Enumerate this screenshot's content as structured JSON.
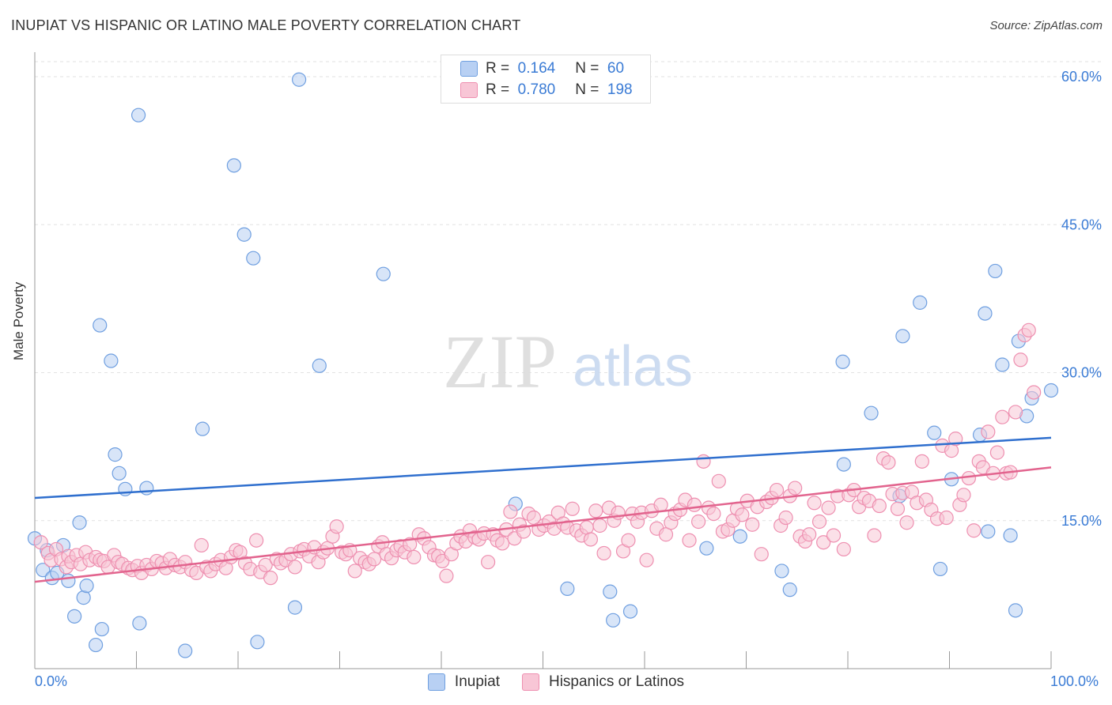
{
  "title": "INUPIAT VS HISPANIC OR LATINO MALE POVERTY CORRELATION CHART",
  "source": "Source: ZipAtlas.com",
  "watermark": {
    "zip": "ZIP",
    "atlas": "atlas"
  },
  "stats": [
    {
      "r_label": "R =",
      "r_value": "0.164",
      "n_label": "N =",
      "n_value": "60"
    },
    {
      "r_label": "R =",
      "r_value": "0.780",
      "n_label": "N =",
      "n_value": "198"
    }
  ],
  "chart_data": {
    "type": "scatter",
    "ylabel": "Male Poverty",
    "xlim": [
      0,
      100
    ],
    "ylim": [
      0,
      60
    ],
    "x_ticks": [
      "0.0%",
      "100.0%"
    ],
    "y_ticks": [
      {
        "value": 15,
        "label": "15.0%"
      },
      {
        "value": 30,
        "label": "30.0%"
      },
      {
        "value": 45,
        "label": "45.0%"
      },
      {
        "value": 60,
        "label": "60.0%"
      }
    ],
    "grid": true,
    "colors": {
      "inupiat": "#6f9fe0",
      "inupiat_fill": "#b8d0f3",
      "inupiat_line": "#2f6fce",
      "hispanic": "#ee8fb0",
      "hispanic_fill": "#f8c6d6",
      "hispanic_line": "#e2648e",
      "value_text": "#3a7bd5"
    },
    "series": [
      {
        "name": "Inupiat",
        "trend": [
          [
            0,
            17.3
          ],
          [
            100,
            23.4
          ]
        ],
        "points": [
          [
            0.0,
            13.2
          ],
          [
            0.8,
            10.0
          ],
          [
            1.2,
            12.0
          ],
          [
            1.7,
            9.2
          ],
          [
            2.2,
            9.7
          ],
          [
            2.8,
            12.5
          ],
          [
            3.3,
            8.9
          ],
          [
            3.9,
            5.3
          ],
          [
            4.4,
            14.8
          ],
          [
            4.8,
            7.2
          ],
          [
            5.1,
            8.4
          ],
          [
            6.4,
            34.8
          ],
          [
            6.6,
            4.0
          ],
          [
            6.0,
            2.4
          ],
          [
            7.5,
            31.2
          ],
          [
            7.9,
            21.7
          ],
          [
            8.3,
            19.8
          ],
          [
            8.9,
            18.2
          ],
          [
            10.2,
            56.1
          ],
          [
            10.3,
            4.6
          ],
          [
            11.0,
            18.3
          ],
          [
            14.8,
            1.8
          ],
          [
            16.5,
            24.3
          ],
          [
            19.6,
            51.0
          ],
          [
            20.6,
            44.0
          ],
          [
            21.5,
            41.6
          ],
          [
            21.9,
            2.7
          ],
          [
            25.6,
            6.2
          ],
          [
            26.0,
            59.7
          ],
          [
            28.0,
            30.7
          ],
          [
            34.3,
            40.0
          ],
          [
            47.3,
            16.7
          ],
          [
            52.4,
            8.1
          ],
          [
            56.6,
            7.8
          ],
          [
            56.9,
            4.9
          ],
          [
            58.6,
            5.8
          ],
          [
            66.1,
            12.2
          ],
          [
            69.4,
            13.4
          ],
          [
            73.5,
            9.9
          ],
          [
            74.3,
            8.0
          ],
          [
            79.5,
            31.1
          ],
          [
            79.6,
            20.7
          ],
          [
            82.3,
            25.9
          ],
          [
            85.1,
            17.5
          ],
          [
            85.4,
            33.7
          ],
          [
            87.1,
            37.1
          ],
          [
            88.5,
            23.9
          ],
          [
            89.1,
            10.1
          ],
          [
            90.2,
            19.2
          ],
          [
            93.0,
            23.7
          ],
          [
            93.5,
            36.0
          ],
          [
            93.8,
            13.9
          ],
          [
            94.5,
            40.3
          ],
          [
            95.2,
            30.8
          ],
          [
            96.0,
            13.5
          ],
          [
            96.5,
            5.9
          ],
          [
            96.8,
            33.2
          ],
          [
            97.6,
            25.6
          ],
          [
            98.1,
            27.4
          ],
          [
            100.0,
            28.2
          ]
        ]
      },
      {
        "name": "Hispanics or Latinos",
        "trend": [
          [
            0,
            8.8
          ],
          [
            100,
            20.4
          ]
        ],
        "points": [
          [
            0.6,
            12.8
          ],
          [
            1.3,
            11.7
          ],
          [
            1.6,
            11.0
          ],
          [
            2.1,
            12.1
          ],
          [
            2.6,
            11.1
          ],
          [
            3.1,
            10.3
          ],
          [
            3.3,
            11.4
          ],
          [
            3.6,
            10.8
          ],
          [
            4.1,
            11.5
          ],
          [
            4.5,
            10.6
          ],
          [
            5.0,
            11.8
          ],
          [
            5.4,
            11.0
          ],
          [
            6.0,
            11.3
          ],
          [
            6.4,
            11.0
          ],
          [
            6.8,
            10.9
          ],
          [
            7.2,
            10.3
          ],
          [
            7.8,
            11.5
          ],
          [
            8.2,
            10.8
          ],
          [
            8.6,
            10.6
          ],
          [
            9.2,
            10.2
          ],
          [
            9.6,
            10.0
          ],
          [
            10.1,
            10.4
          ],
          [
            10.5,
            9.7
          ],
          [
            11.0,
            10.5
          ],
          [
            11.5,
            10.1
          ],
          [
            12.0,
            10.9
          ],
          [
            12.5,
            10.7
          ],
          [
            12.9,
            10.2
          ],
          [
            13.3,
            11.1
          ],
          [
            13.8,
            10.5
          ],
          [
            14.3,
            10.3
          ],
          [
            14.8,
            10.8
          ],
          [
            15.4,
            10.0
          ],
          [
            15.9,
            9.7
          ],
          [
            16.4,
            12.5
          ],
          [
            16.9,
            10.3
          ],
          [
            17.3,
            9.9
          ],
          [
            17.8,
            10.6
          ],
          [
            18.3,
            11.0
          ],
          [
            18.8,
            10.2
          ],
          [
            19.3,
            11.3
          ],
          [
            19.8,
            12.0
          ],
          [
            20.2,
            11.8
          ],
          [
            20.7,
            10.7
          ],
          [
            21.2,
            10.1
          ],
          [
            21.8,
            13.0
          ],
          [
            22.2,
            9.8
          ],
          [
            22.7,
            10.5
          ],
          [
            23.2,
            9.2
          ],
          [
            23.8,
            11.1
          ],
          [
            24.2,
            10.7
          ],
          [
            24.7,
            11.0
          ],
          [
            25.2,
            11.6
          ],
          [
            25.6,
            10.3
          ],
          [
            26.1,
            11.9
          ],
          [
            26.5,
            12.1
          ],
          [
            27.0,
            11.4
          ],
          [
            27.5,
            12.3
          ],
          [
            27.9,
            10.8
          ],
          [
            28.4,
            11.8
          ],
          [
            28.8,
            12.2
          ],
          [
            29.3,
            13.4
          ],
          [
            29.7,
            14.4
          ],
          [
            30.2,
            11.8
          ],
          [
            30.6,
            11.6
          ],
          [
            31.0,
            12.0
          ],
          [
            31.5,
            9.9
          ],
          [
            32.0,
            11.2
          ],
          [
            32.5,
            10.8
          ],
          [
            32.9,
            10.6
          ],
          [
            33.4,
            11.1
          ],
          [
            33.8,
            12.4
          ],
          [
            34.2,
            12.8
          ],
          [
            34.6,
            11.6
          ],
          [
            35.1,
            11.2
          ],
          [
            35.6,
            12.0
          ],
          [
            36.0,
            12.4
          ],
          [
            36.4,
            11.8
          ],
          [
            36.9,
            12.6
          ],
          [
            37.3,
            11.3
          ],
          [
            37.8,
            13.6
          ],
          [
            38.3,
            13.2
          ],
          [
            38.8,
            12.3
          ],
          [
            39.3,
            11.5
          ],
          [
            39.7,
            11.4
          ],
          [
            40.1,
            10.9
          ],
          [
            40.5,
            9.4
          ],
          [
            41.0,
            11.6
          ],
          [
            41.5,
            12.7
          ],
          [
            41.9,
            13.4
          ],
          [
            42.4,
            12.9
          ],
          [
            42.8,
            14.0
          ],
          [
            43.3,
            13.3
          ],
          [
            43.7,
            13.1
          ],
          [
            44.2,
            13.7
          ],
          [
            44.6,
            10.8
          ],
          [
            45.1,
            13.6
          ],
          [
            45.5,
            13.0
          ],
          [
            46.0,
            12.7
          ],
          [
            46.4,
            14.1
          ],
          [
            46.8,
            15.9
          ],
          [
            47.2,
            13.2
          ],
          [
            47.7,
            14.6
          ],
          [
            48.1,
            13.9
          ],
          [
            48.6,
            15.7
          ],
          [
            49.1,
            15.3
          ],
          [
            49.6,
            14.1
          ],
          [
            50.1,
            14.5
          ],
          [
            50.6,
            14.9
          ],
          [
            51.1,
            14.2
          ],
          [
            51.5,
            15.8
          ],
          [
            52.0,
            14.7
          ],
          [
            52.4,
            14.3
          ],
          [
            52.9,
            16.2
          ],
          [
            53.3,
            14.0
          ],
          [
            53.8,
            13.5
          ],
          [
            54.3,
            14.3
          ],
          [
            54.7,
            13.1
          ],
          [
            55.2,
            16.0
          ],
          [
            55.6,
            14.5
          ],
          [
            56.0,
            11.7
          ],
          [
            56.5,
            16.3
          ],
          [
            57.0,
            15.0
          ],
          [
            57.4,
            15.8
          ],
          [
            57.9,
            11.9
          ],
          [
            58.4,
            13.0
          ],
          [
            58.8,
            15.7
          ],
          [
            59.3,
            14.9
          ],
          [
            59.7,
            15.8
          ],
          [
            60.2,
            11.0
          ],
          [
            60.7,
            16.0
          ],
          [
            61.2,
            14.2
          ],
          [
            61.6,
            16.6
          ],
          [
            62.1,
            13.6
          ],
          [
            62.6,
            14.8
          ],
          [
            63.0,
            15.7
          ],
          [
            63.5,
            16.1
          ],
          [
            64.0,
            17.1
          ],
          [
            64.4,
            13.0
          ],
          [
            64.9,
            16.6
          ],
          [
            65.3,
            14.9
          ],
          [
            65.8,
            21.0
          ],
          [
            66.3,
            16.3
          ],
          [
            66.8,
            15.7
          ],
          [
            67.3,
            19.0
          ],
          [
            67.7,
            13.9
          ],
          [
            68.2,
            14.1
          ],
          [
            68.7,
            15.0
          ],
          [
            69.1,
            16.2
          ],
          [
            69.6,
            15.6
          ],
          [
            70.1,
            17.0
          ],
          [
            70.6,
            14.6
          ],
          [
            71.1,
            16.4
          ],
          [
            71.5,
            11.6
          ],
          [
            72.0,
            16.9
          ],
          [
            72.5,
            17.3
          ],
          [
            73.0,
            18.1
          ],
          [
            73.4,
            14.5
          ],
          [
            73.9,
            15.3
          ],
          [
            74.3,
            17.5
          ],
          [
            74.8,
            18.3
          ],
          [
            75.3,
            13.4
          ],
          [
            75.8,
            12.9
          ],
          [
            76.2,
            13.6
          ],
          [
            76.7,
            16.8
          ],
          [
            77.2,
            14.9
          ],
          [
            77.6,
            12.8
          ],
          [
            78.1,
            16.3
          ],
          [
            78.6,
            13.5
          ],
          [
            79.0,
            17.5
          ],
          [
            79.6,
            12.1
          ],
          [
            80.1,
            17.6
          ],
          [
            80.6,
            18.1
          ],
          [
            81.1,
            16.4
          ],
          [
            81.6,
            17.3
          ],
          [
            82.1,
            17.0
          ],
          [
            82.6,
            13.5
          ],
          [
            83.1,
            16.5
          ],
          [
            83.5,
            21.3
          ],
          [
            84.0,
            20.9
          ],
          [
            84.4,
            17.7
          ],
          [
            84.9,
            16.2
          ],
          [
            85.4,
            17.8
          ],
          [
            85.8,
            14.8
          ],
          [
            86.3,
            17.9
          ],
          [
            86.8,
            16.8
          ],
          [
            87.3,
            21.0
          ],
          [
            87.7,
            17.1
          ],
          [
            88.2,
            16.1
          ],
          [
            88.8,
            15.2
          ],
          [
            89.3,
            22.6
          ],
          [
            89.7,
            15.3
          ],
          [
            90.2,
            22.1
          ],
          [
            90.6,
            23.3
          ],
          [
            91.0,
            16.6
          ],
          [
            91.4,
            17.6
          ],
          [
            91.9,
            19.3
          ],
          [
            92.4,
            14.0
          ],
          [
            92.9,
            21.0
          ],
          [
            93.3,
            20.4
          ],
          [
            93.8,
            24.0
          ],
          [
            94.3,
            19.8
          ],
          [
            94.7,
            21.9
          ],
          [
            95.2,
            25.5
          ],
          [
            95.6,
            19.8
          ],
          [
            96.0,
            19.9
          ],
          [
            96.5,
            26.0
          ],
          [
            97.0,
            31.3
          ],
          [
            97.4,
            33.8
          ],
          [
            97.8,
            34.3
          ],
          [
            98.3,
            28.0
          ]
        ]
      }
    ]
  },
  "legend": [
    {
      "label": "Inupiat",
      "color": "#b8d0f3",
      "border": "#6f9fe0"
    },
    {
      "label": "Hispanics or Latinos",
      "color": "#f8c6d6",
      "border": "#ee8fb0"
    }
  ]
}
